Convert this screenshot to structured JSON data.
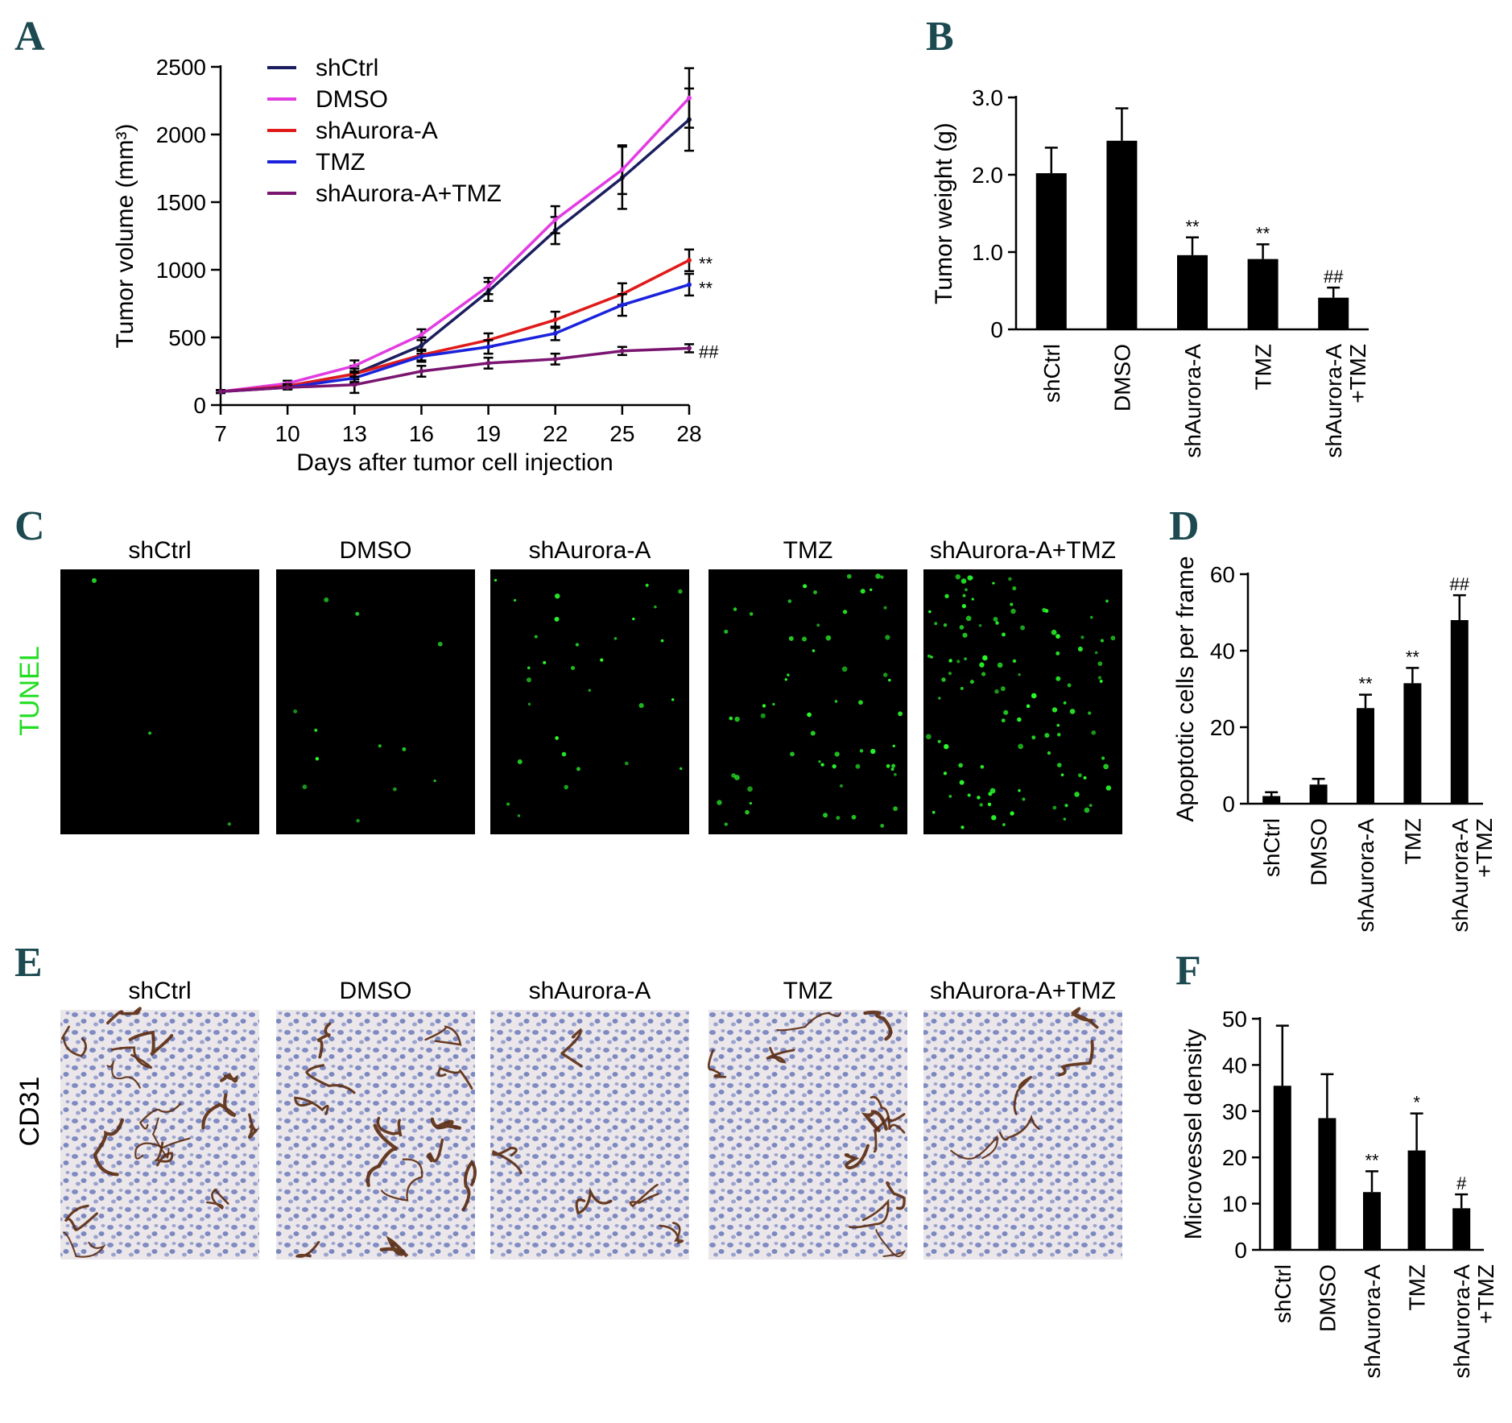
{
  "panel_letters": [
    "A",
    "B",
    "C",
    "D",
    "E",
    "F"
  ],
  "colors": {
    "shCtrl": "#1b1e5e",
    "DMSO": "#e23ce3",
    "shAurora-A": "#e01a1a",
    "TMZ": "#1a22dc",
    "shAurora-A+TMZ": "#7a1570",
    "panel_letter": "#1c4a50",
    "tunel_label": "#22dd22",
    "bar": "#000000"
  },
  "chart_data": [
    {
      "id": "A",
      "type": "line",
      "xlabel": "Days after tumor cell injection",
      "ylabel": "Tumor volume (mm³)",
      "x": [
        7,
        10,
        13,
        16,
        19,
        22,
        25,
        28
      ],
      "xlim": [
        7,
        28
      ],
      "ylim": [
        0,
        2500
      ],
      "yticks": [
        0,
        500,
        1000,
        1500,
        2000,
        2500
      ],
      "legend_position": "top-left",
      "series": [
        {
          "name": "shCtrl",
          "values": [
            100,
            140,
            230,
            440,
            840,
            1290,
            1680,
            2110
          ],
          "errors": [
            10,
            20,
            60,
            60,
            70,
            100,
            230,
            230
          ]
        },
        {
          "name": "DMSO",
          "values": [
            100,
            160,
            290,
            520,
            880,
            1370,
            1740,
            2270
          ],
          "errors": [
            10,
            20,
            40,
            40,
            60,
            100,
            180,
            220
          ]
        },
        {
          "name": "shAurora-A",
          "values": [
            100,
            140,
            230,
            370,
            480,
            630,
            820,
            1070
          ],
          "errors": [
            10,
            15,
            40,
            40,
            50,
            60,
            80,
            80
          ]
        },
        {
          "name": "TMZ",
          "values": [
            100,
            130,
            200,
            360,
            430,
            530,
            740,
            890
          ],
          "errors": [
            10,
            15,
            40,
            40,
            50,
            50,
            80,
            80
          ]
        },
        {
          "name": "shAurora-A+TMZ",
          "values": [
            100,
            130,
            150,
            250,
            310,
            340,
            400,
            420
          ],
          "errors": [
            10,
            10,
            60,
            40,
            40,
            40,
            30,
            30
          ]
        }
      ],
      "annotations": [
        {
          "series": "shAurora-A",
          "text": "**"
        },
        {
          "series": "TMZ",
          "text": "**"
        },
        {
          "series": "shAurora-A+TMZ",
          "text": "##"
        }
      ]
    },
    {
      "id": "B",
      "type": "bar",
      "ylabel": "Tumor weight (g)",
      "categories": [
        "shCtrl",
        "DMSO",
        "shAurora-A",
        "TMZ",
        "shAurora-A\n+TMZ"
      ],
      "values": [
        2.02,
        2.44,
        0.96,
        0.91,
        0.41
      ],
      "errors": [
        0.33,
        0.42,
        0.23,
        0.19,
        0.13
      ],
      "ylim": [
        0,
        3.0
      ],
      "yticks": [
        0,
        1.0,
        2.0,
        3.0
      ],
      "ytick_labels": [
        "0",
        "1.0",
        "2.0",
        "3.0"
      ],
      "annotations": [
        "",
        "",
        "**",
        "**",
        "##"
      ]
    },
    {
      "id": "D",
      "type": "bar",
      "ylabel": "Apoptotic cells per frame",
      "categories": [
        "shCtrl",
        "DMSO",
        "shAurora-A",
        "TMZ",
        "shAurora-A\n+TMZ"
      ],
      "values": [
        2.0,
        5.0,
        25.0,
        31.5,
        48.0
      ],
      "errors": [
        1.0,
        1.5,
        3.5,
        4.0,
        6.5
      ],
      "ylim": [
        0,
        60
      ],
      "yticks": [
        0,
        20,
        40,
        60
      ],
      "annotations": [
        "",
        "",
        "**",
        "**",
        "##"
      ]
    },
    {
      "id": "F",
      "type": "bar",
      "ylabel": "Microvessel density",
      "categories": [
        "shCtrl",
        "DMSO",
        "shAurora-A",
        "TMZ",
        "shAurora-A\n+TMZ"
      ],
      "values": [
        35.5,
        28.5,
        12.5,
        21.5,
        9.0
      ],
      "errors": [
        13.0,
        9.5,
        4.5,
        8.0,
        3.0
      ],
      "ylim": [
        0,
        50
      ],
      "yticks": [
        0,
        10,
        20,
        30,
        40,
        50
      ],
      "annotations": [
        "",
        "",
        "**",
        "*",
        "#"
      ]
    }
  ],
  "image_panels": {
    "C": {
      "row_label": "TUNEL",
      "labels": [
        "shCtrl",
        "DMSO",
        "shAurora-A",
        "TMZ",
        "shAurora-A+TMZ"
      ],
      "spot_counts": [
        3,
        12,
        30,
        60,
        110
      ]
    },
    "E": {
      "row_label": "CD31",
      "labels": [
        "shCtrl",
        "DMSO",
        "shAurora-A",
        "TMZ",
        "shAurora-A+TMZ"
      ],
      "vessel_counts": [
        16,
        13,
        5,
        11,
        5
      ]
    }
  }
}
